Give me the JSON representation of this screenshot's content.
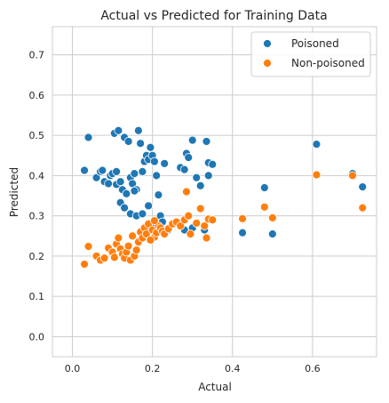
{
  "chart_data": {
    "type": "scatter",
    "title": "Actual vs Predicted for Training Data",
    "xlabel": "Actual",
    "ylabel": "Predicted",
    "xlim": [
      -0.05,
      0.76
    ],
    "ylim": [
      -0.05,
      0.77
    ],
    "xticks": [
      0.0,
      0.2,
      0.4,
      0.6
    ],
    "yticks": [
      0.0,
      0.1,
      0.2,
      0.3,
      0.4,
      0.5,
      0.6,
      0.7
    ],
    "xtick_labels": [
      "0.0",
      "0.2",
      "0.4",
      "0.6"
    ],
    "ytick_labels": [
      "0.0",
      "0.1",
      "0.2",
      "0.3",
      "0.4",
      "0.5",
      "0.6",
      "0.7"
    ],
    "grid": true,
    "legend_position": "top-right",
    "series": [
      {
        "name": "Poisoned",
        "color": "#1f77b4",
        "points": [
          [
            0.03,
            0.413
          ],
          [
            0.04,
            0.495
          ],
          [
            0.06,
            0.395
          ],
          [
            0.07,
            0.41
          ],
          [
            0.075,
            0.413
          ],
          [
            0.08,
            0.385
          ],
          [
            0.09,
            0.38
          ],
          [
            0.095,
            0.4
          ],
          [
            0.1,
            0.405
          ],
          [
            0.105,
            0.505
          ],
          [
            0.11,
            0.378
          ],
          [
            0.11,
            0.41
          ],
          [
            0.115,
            0.512
          ],
          [
            0.12,
            0.385
          ],
          [
            0.125,
            0.365
          ],
          [
            0.13,
            0.495
          ],
          [
            0.135,
            0.355
          ],
          [
            0.14,
            0.485
          ],
          [
            0.145,
            0.395
          ],
          [
            0.15,
            0.38
          ],
          [
            0.155,
            0.405
          ],
          [
            0.16,
            0.365
          ],
          [
            0.165,
            0.512
          ],
          [
            0.17,
            0.48
          ],
          [
            0.175,
            0.41
          ],
          [
            0.18,
            0.435
          ],
          [
            0.185,
            0.45
          ],
          [
            0.19,
            0.44
          ],
          [
            0.195,
            0.47
          ],
          [
            0.2,
            0.45
          ],
          [
            0.205,
            0.435
          ],
          [
            0.21,
            0.4
          ],
          [
            0.215,
            0.352
          ],
          [
            0.22,
            0.3
          ],
          [
            0.225,
            0.285
          ],
          [
            0.23,
            0.43
          ],
          [
            0.24,
            0.265
          ],
          [
            0.27,
            0.42
          ],
          [
            0.28,
            0.415
          ],
          [
            0.285,
            0.455
          ],
          [
            0.29,
            0.445
          ],
          [
            0.3,
            0.488
          ],
          [
            0.31,
            0.395
          ],
          [
            0.32,
            0.375
          ],
          [
            0.335,
            0.485
          ],
          [
            0.34,
            0.432
          ],
          [
            0.35,
            0.428
          ],
          [
            0.425,
            0.258
          ],
          [
            0.48,
            0.37
          ],
          [
            0.5,
            0.255
          ],
          [
            0.61,
            0.478
          ],
          [
            0.7,
            0.405
          ],
          [
            0.725,
            0.372
          ],
          [
            0.12,
            0.333
          ],
          [
            0.13,
            0.32
          ],
          [
            0.145,
            0.305
          ],
          [
            0.16,
            0.3
          ],
          [
            0.175,
            0.305
          ],
          [
            0.19,
            0.325
          ],
          [
            0.2,
            0.28
          ],
          [
            0.28,
            0.265
          ],
          [
            0.3,
            0.27
          ],
          [
            0.33,
            0.265
          ],
          [
            0.34,
            0.4
          ],
          [
            0.155,
            0.362
          ]
        ]
      },
      {
        "name": "Non-poisoned",
        "color": "#ff7f0e",
        "points": [
          [
            0.03,
            0.18
          ],
          [
            0.04,
            0.224
          ],
          [
            0.06,
            0.2
          ],
          [
            0.07,
            0.19
          ],
          [
            0.08,
            0.195
          ],
          [
            0.09,
            0.22
          ],
          [
            0.1,
            0.21
          ],
          [
            0.105,
            0.197
          ],
          [
            0.11,
            0.23
          ],
          [
            0.115,
            0.245
          ],
          [
            0.12,
            0.218
          ],
          [
            0.125,
            0.205
          ],
          [
            0.13,
            0.195
          ],
          [
            0.135,
            0.21
          ],
          [
            0.14,
            0.225
          ],
          [
            0.145,
            0.19
          ],
          [
            0.15,
            0.25
          ],
          [
            0.155,
            0.2
          ],
          [
            0.16,
            0.215
          ],
          [
            0.165,
            0.235
          ],
          [
            0.17,
            0.26
          ],
          [
            0.175,
            0.245
          ],
          [
            0.18,
            0.27
          ],
          [
            0.185,
            0.255
          ],
          [
            0.19,
            0.28
          ],
          [
            0.2,
            0.265
          ],
          [
            0.205,
            0.247
          ],
          [
            0.21,
            0.258
          ],
          [
            0.215,
            0.275
          ],
          [
            0.22,
            0.27
          ],
          [
            0.225,
            0.262
          ],
          [
            0.23,
            0.255
          ],
          [
            0.24,
            0.268
          ],
          [
            0.25,
            0.28
          ],
          [
            0.26,
            0.285
          ],
          [
            0.27,
            0.275
          ],
          [
            0.28,
            0.29
          ],
          [
            0.285,
            0.36
          ],
          [
            0.29,
            0.3
          ],
          [
            0.295,
            0.255
          ],
          [
            0.31,
            0.282
          ],
          [
            0.32,
            0.318
          ],
          [
            0.33,
            0.275
          ],
          [
            0.335,
            0.245
          ],
          [
            0.34,
            0.292
          ],
          [
            0.35,
            0.29
          ],
          [
            0.425,
            0.293
          ],
          [
            0.48,
            0.322
          ],
          [
            0.5,
            0.295
          ],
          [
            0.61,
            0.402
          ],
          [
            0.7,
            0.4
          ],
          [
            0.725,
            0.32
          ],
          [
            0.195,
            0.24
          ],
          [
            0.205,
            0.288
          ]
        ]
      }
    ]
  }
}
